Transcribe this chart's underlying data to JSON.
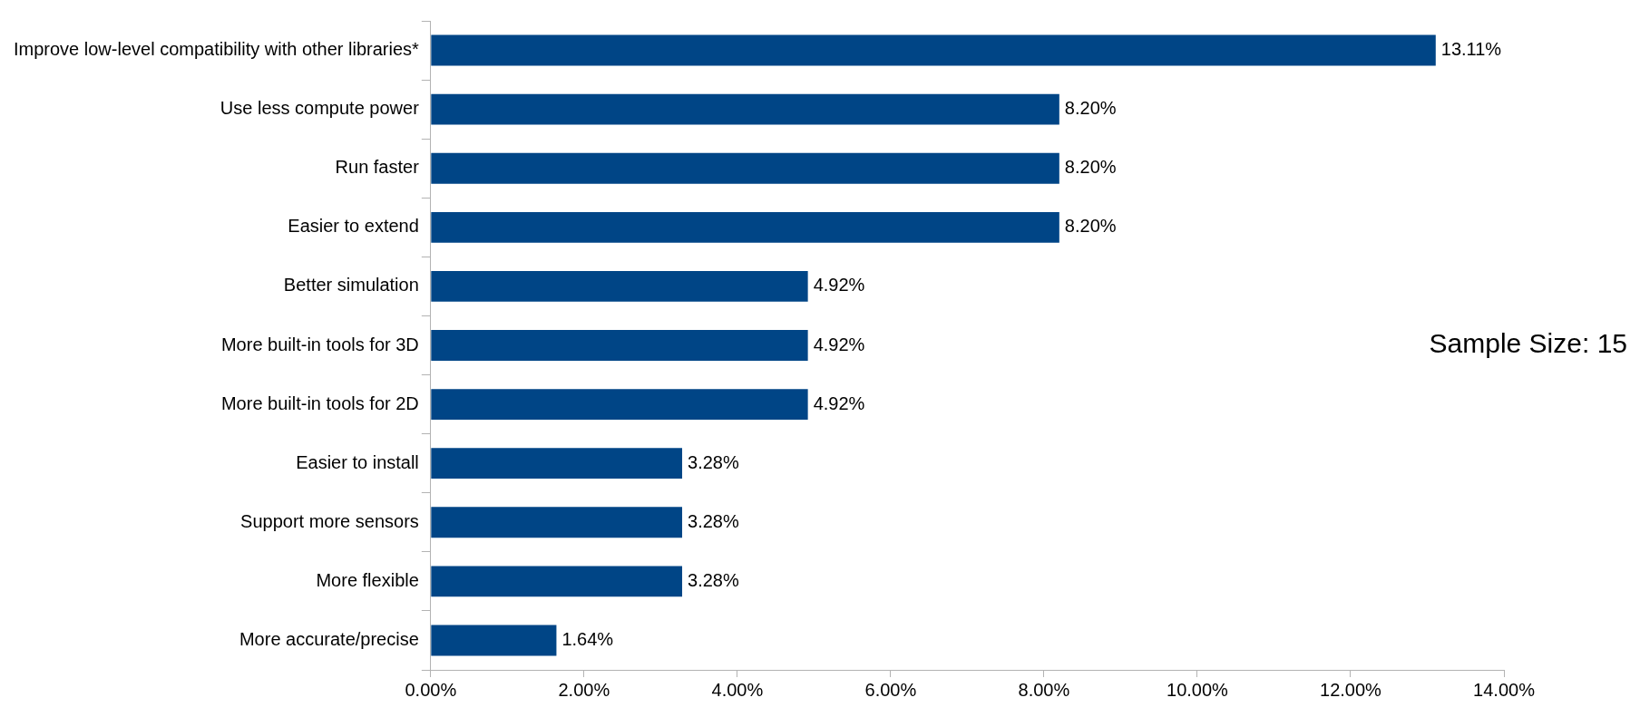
{
  "chart_data": {
    "type": "bar",
    "orientation": "horizontal",
    "categories": [
      "Improve low-level compatibility with other libraries*",
      "Use less compute power",
      "Run faster",
      "Easier to extend",
      "Better simulation",
      "More built-in tools for 3D",
      "More built-in tools for 2D",
      "Easier to install",
      "Support more sensors",
      "More flexible",
      "More accurate/precise"
    ],
    "values": [
      13.11,
      8.2,
      8.2,
      8.2,
      4.92,
      4.92,
      4.92,
      3.28,
      3.28,
      3.28,
      1.64
    ],
    "value_labels": [
      "13.11%",
      "8.20%",
      "8.20%",
      "8.20%",
      "4.92%",
      "4.92%",
      "4.92%",
      "3.28%",
      "3.28%",
      "3.28%",
      "1.64%"
    ],
    "color": "#004586",
    "xlim": [
      0,
      14
    ],
    "xticks": [
      {
        "value": 0,
        "label": "0.00%"
      },
      {
        "value": 2,
        "label": "2.00%"
      },
      {
        "value": 4,
        "label": "4.00%"
      },
      {
        "value": 6,
        "label": "6.00%"
      },
      {
        "value": 8,
        "label": "8.00%"
      },
      {
        "value": 10,
        "label": "10.00%"
      },
      {
        "value": 12,
        "label": "12.00%"
      },
      {
        "value": 14,
        "label": "14.00%"
      }
    ],
    "grid": false,
    "legend": false,
    "annotations": [
      "Sample Size: 15"
    ]
  }
}
